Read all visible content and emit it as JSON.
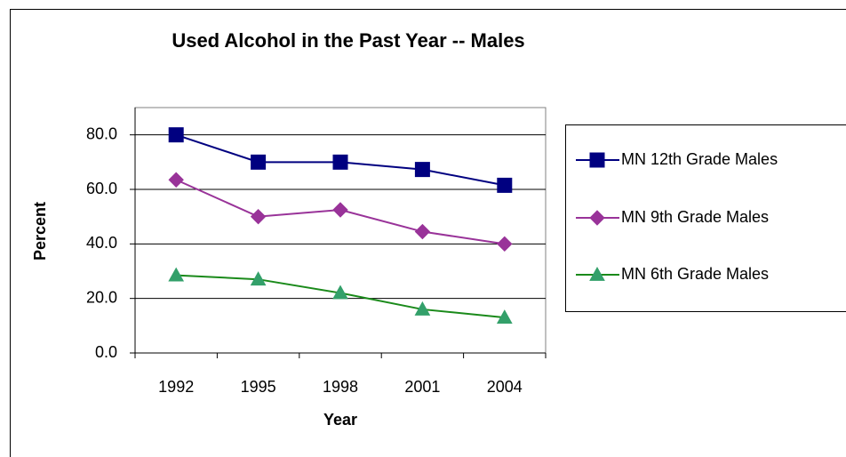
{
  "chart_data": {
    "type": "line",
    "title": "Used Alcohol in the Past Year -- Males",
    "x_label": "Year",
    "y_label": "Percent",
    "categories": [
      "1992",
      "1995",
      "1998",
      "2001",
      "2004"
    ],
    "series": [
      {
        "name": "MN 12th Grade Males",
        "color": "#000080",
        "marker": "square",
        "marker_color": "#000080",
        "values": [
          80.0,
          70.0,
          70.0,
          67.3,
          61.5
        ]
      },
      {
        "name": "MN 9th Grade Males",
        "color": "#993399",
        "marker": "diamond",
        "marker_color": "#993399",
        "values": [
          63.5,
          50.0,
          52.5,
          44.5,
          40.0
        ]
      },
      {
        "name": "MN 6th Grade Males",
        "color": "#1a8a1a",
        "marker": "triangle",
        "marker_color": "#33a06a",
        "values": [
          28.5,
          27.0,
          22.0,
          16.0,
          13.0
        ]
      }
    ],
    "ylim": [
      0,
      90
    ],
    "yticks": [
      {
        "value": 0,
        "label": "0.0"
      },
      {
        "value": 20,
        "label": "20.0"
      },
      {
        "value": 40,
        "label": "40.0"
      },
      {
        "value": 60,
        "label": "60.0"
      },
      {
        "value": 80,
        "label": "80.0"
      }
    ],
    "grid": true,
    "legend": "right"
  }
}
